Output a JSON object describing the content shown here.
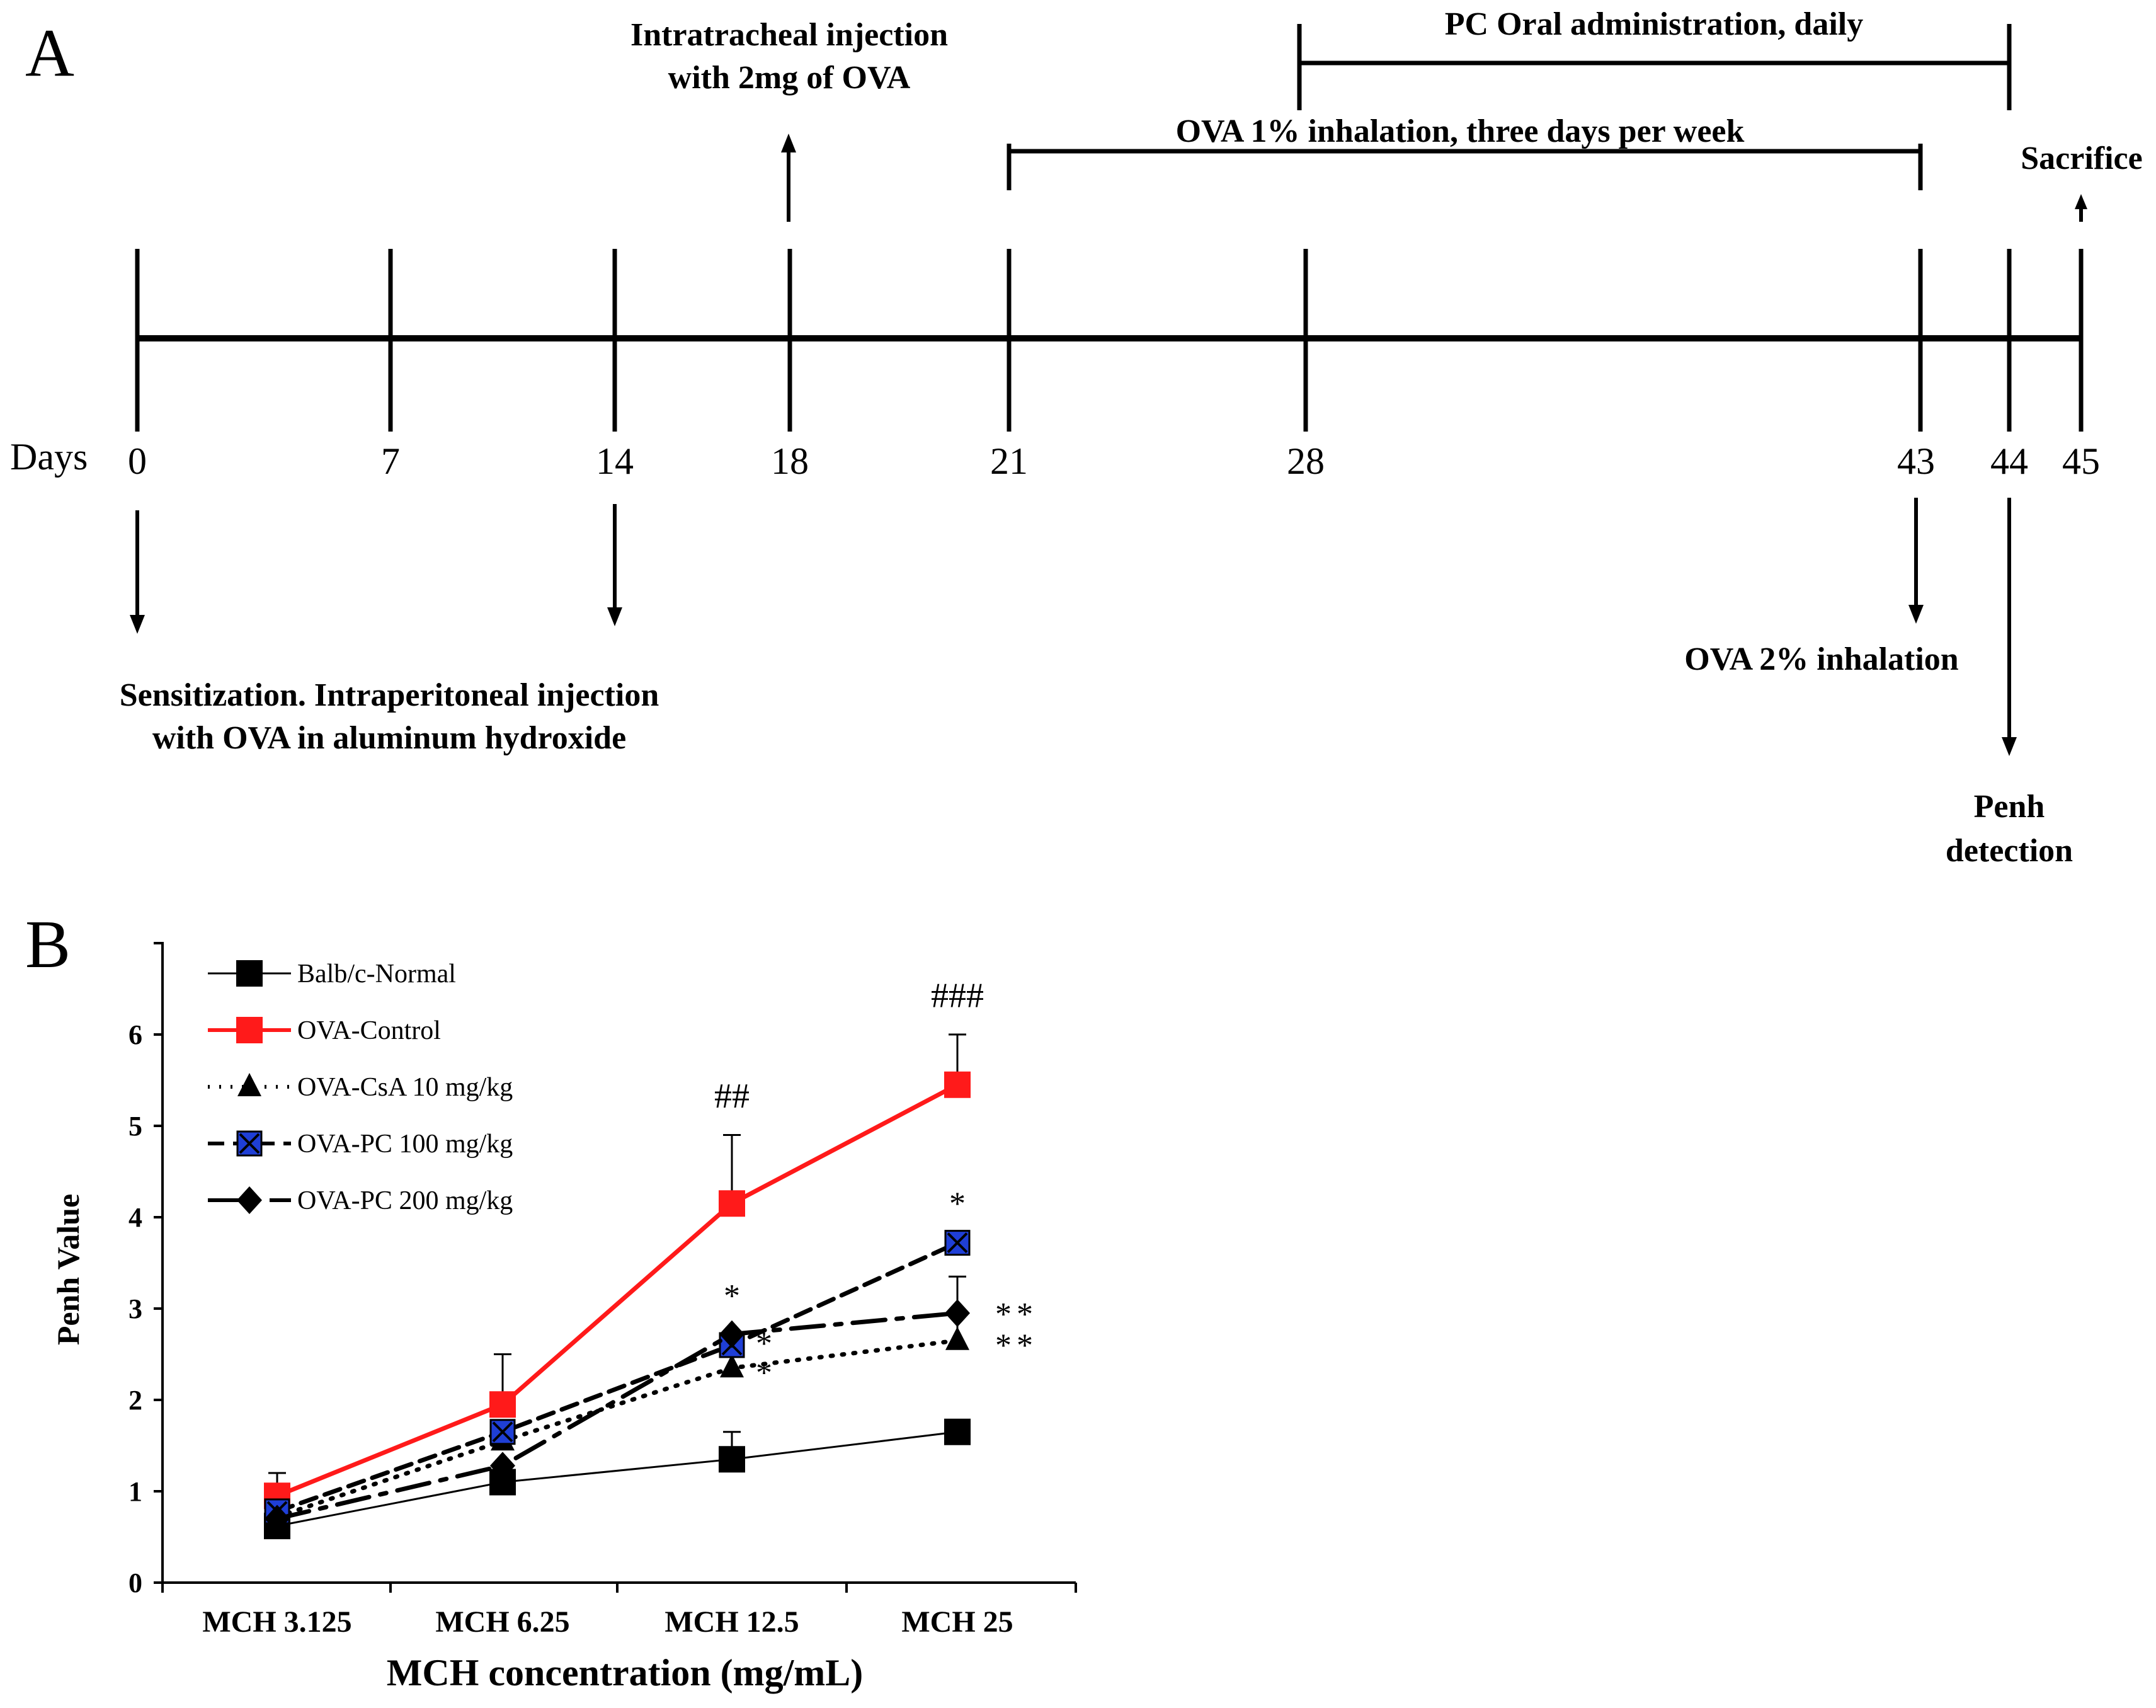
{
  "panel_a": {
    "label": "A",
    "days_label": "Days",
    "days": [
      "0",
      "7",
      "14",
      "18",
      "21",
      "28",
      "43",
      "44",
      "45"
    ],
    "annotations": {
      "intratracheal_1": "Intratracheal injection",
      "intratracheal_2": "with 2mg of OVA",
      "pc_oral": "PC Oral administration, daily",
      "ova_1pct": "OVA 1% inhalation, three days per week",
      "sacrifice": "Sacrifice",
      "sensitization_1": "Sensitization. Intraperitoneal injection",
      "sensitization_2": "with OVA in aluminum hydroxide",
      "ova_2pct": "OVA 2% inhalation",
      "penh_1": "Penh",
      "penh_2": "detection"
    }
  },
  "panel_b": {
    "label": "B"
  },
  "chart_data": {
    "type": "line",
    "title": "",
    "xlabel": "MCH concentration (mg/mL)",
    "ylabel": "Penh Value",
    "categories": [
      "MCH 3.125",
      "MCH 6.25",
      "MCH 12.5",
      "MCH 25"
    ],
    "ylim": [
      0,
      7
    ],
    "yticks": [
      "0",
      "1",
      "2",
      "3",
      "4",
      "5",
      "6"
    ],
    "legend_position": "top-left",
    "series": [
      {
        "name": "Balb/c-Normal",
        "color": "#000000",
        "dash": "solid",
        "marker": "square",
        "values": [
          0.62,
          1.1,
          1.35,
          1.65
        ],
        "errors": [
          0.0,
          0.0,
          0.3,
          0.1
        ]
      },
      {
        "name": "OVA-Control",
        "color": "#ff1a1a",
        "dash": "solid",
        "marker": "square",
        "values": [
          0.95,
          1.95,
          4.15,
          5.45
        ],
        "errors": [
          0.25,
          0.55,
          0.75,
          0.55
        ]
      },
      {
        "name": "OVA-CsA 10 mg/kg",
        "color": "#000000",
        "dash": "dotted",
        "marker": "triangle",
        "values": [
          0.72,
          1.55,
          2.35,
          2.65
        ],
        "errors": [
          0.0,
          0.0,
          0.3,
          0.3
        ]
      },
      {
        "name": "OVA-PC 100 mg/kg",
        "color": "#000000",
        "dash": "dashed",
        "marker": "x-square",
        "values": [
          0.78,
          1.65,
          2.6,
          3.72
        ],
        "errors": [
          0.0,
          0.0,
          0.0,
          0.0
        ]
      },
      {
        "name": "OVA-PC 200 mg/kg",
        "color": "#000000",
        "dash": "dashdot",
        "marker": "diamond",
        "values": [
          0.7,
          1.28,
          2.72,
          2.95
        ],
        "errors": [
          0.0,
          0.0,
          0.0,
          0.4
        ]
      }
    ],
    "annotations": [
      {
        "text": "##",
        "category": 2,
        "y": 5.2
      },
      {
        "text": "###",
        "category": 3,
        "y": 6.3
      },
      {
        "text": "*",
        "category": 2,
        "y": 3.02
      },
      {
        "text": "*",
        "category": 2,
        "y": 2.5
      },
      {
        "text": "*",
        "category": 2,
        "y": 2.18
      },
      {
        "text": "*",
        "category": 3,
        "y": 4.03
      },
      {
        "text": "**",
        "category": 3,
        "y": 2.82
      },
      {
        "text": "**",
        "category": 3,
        "y": 2.48
      }
    ]
  }
}
